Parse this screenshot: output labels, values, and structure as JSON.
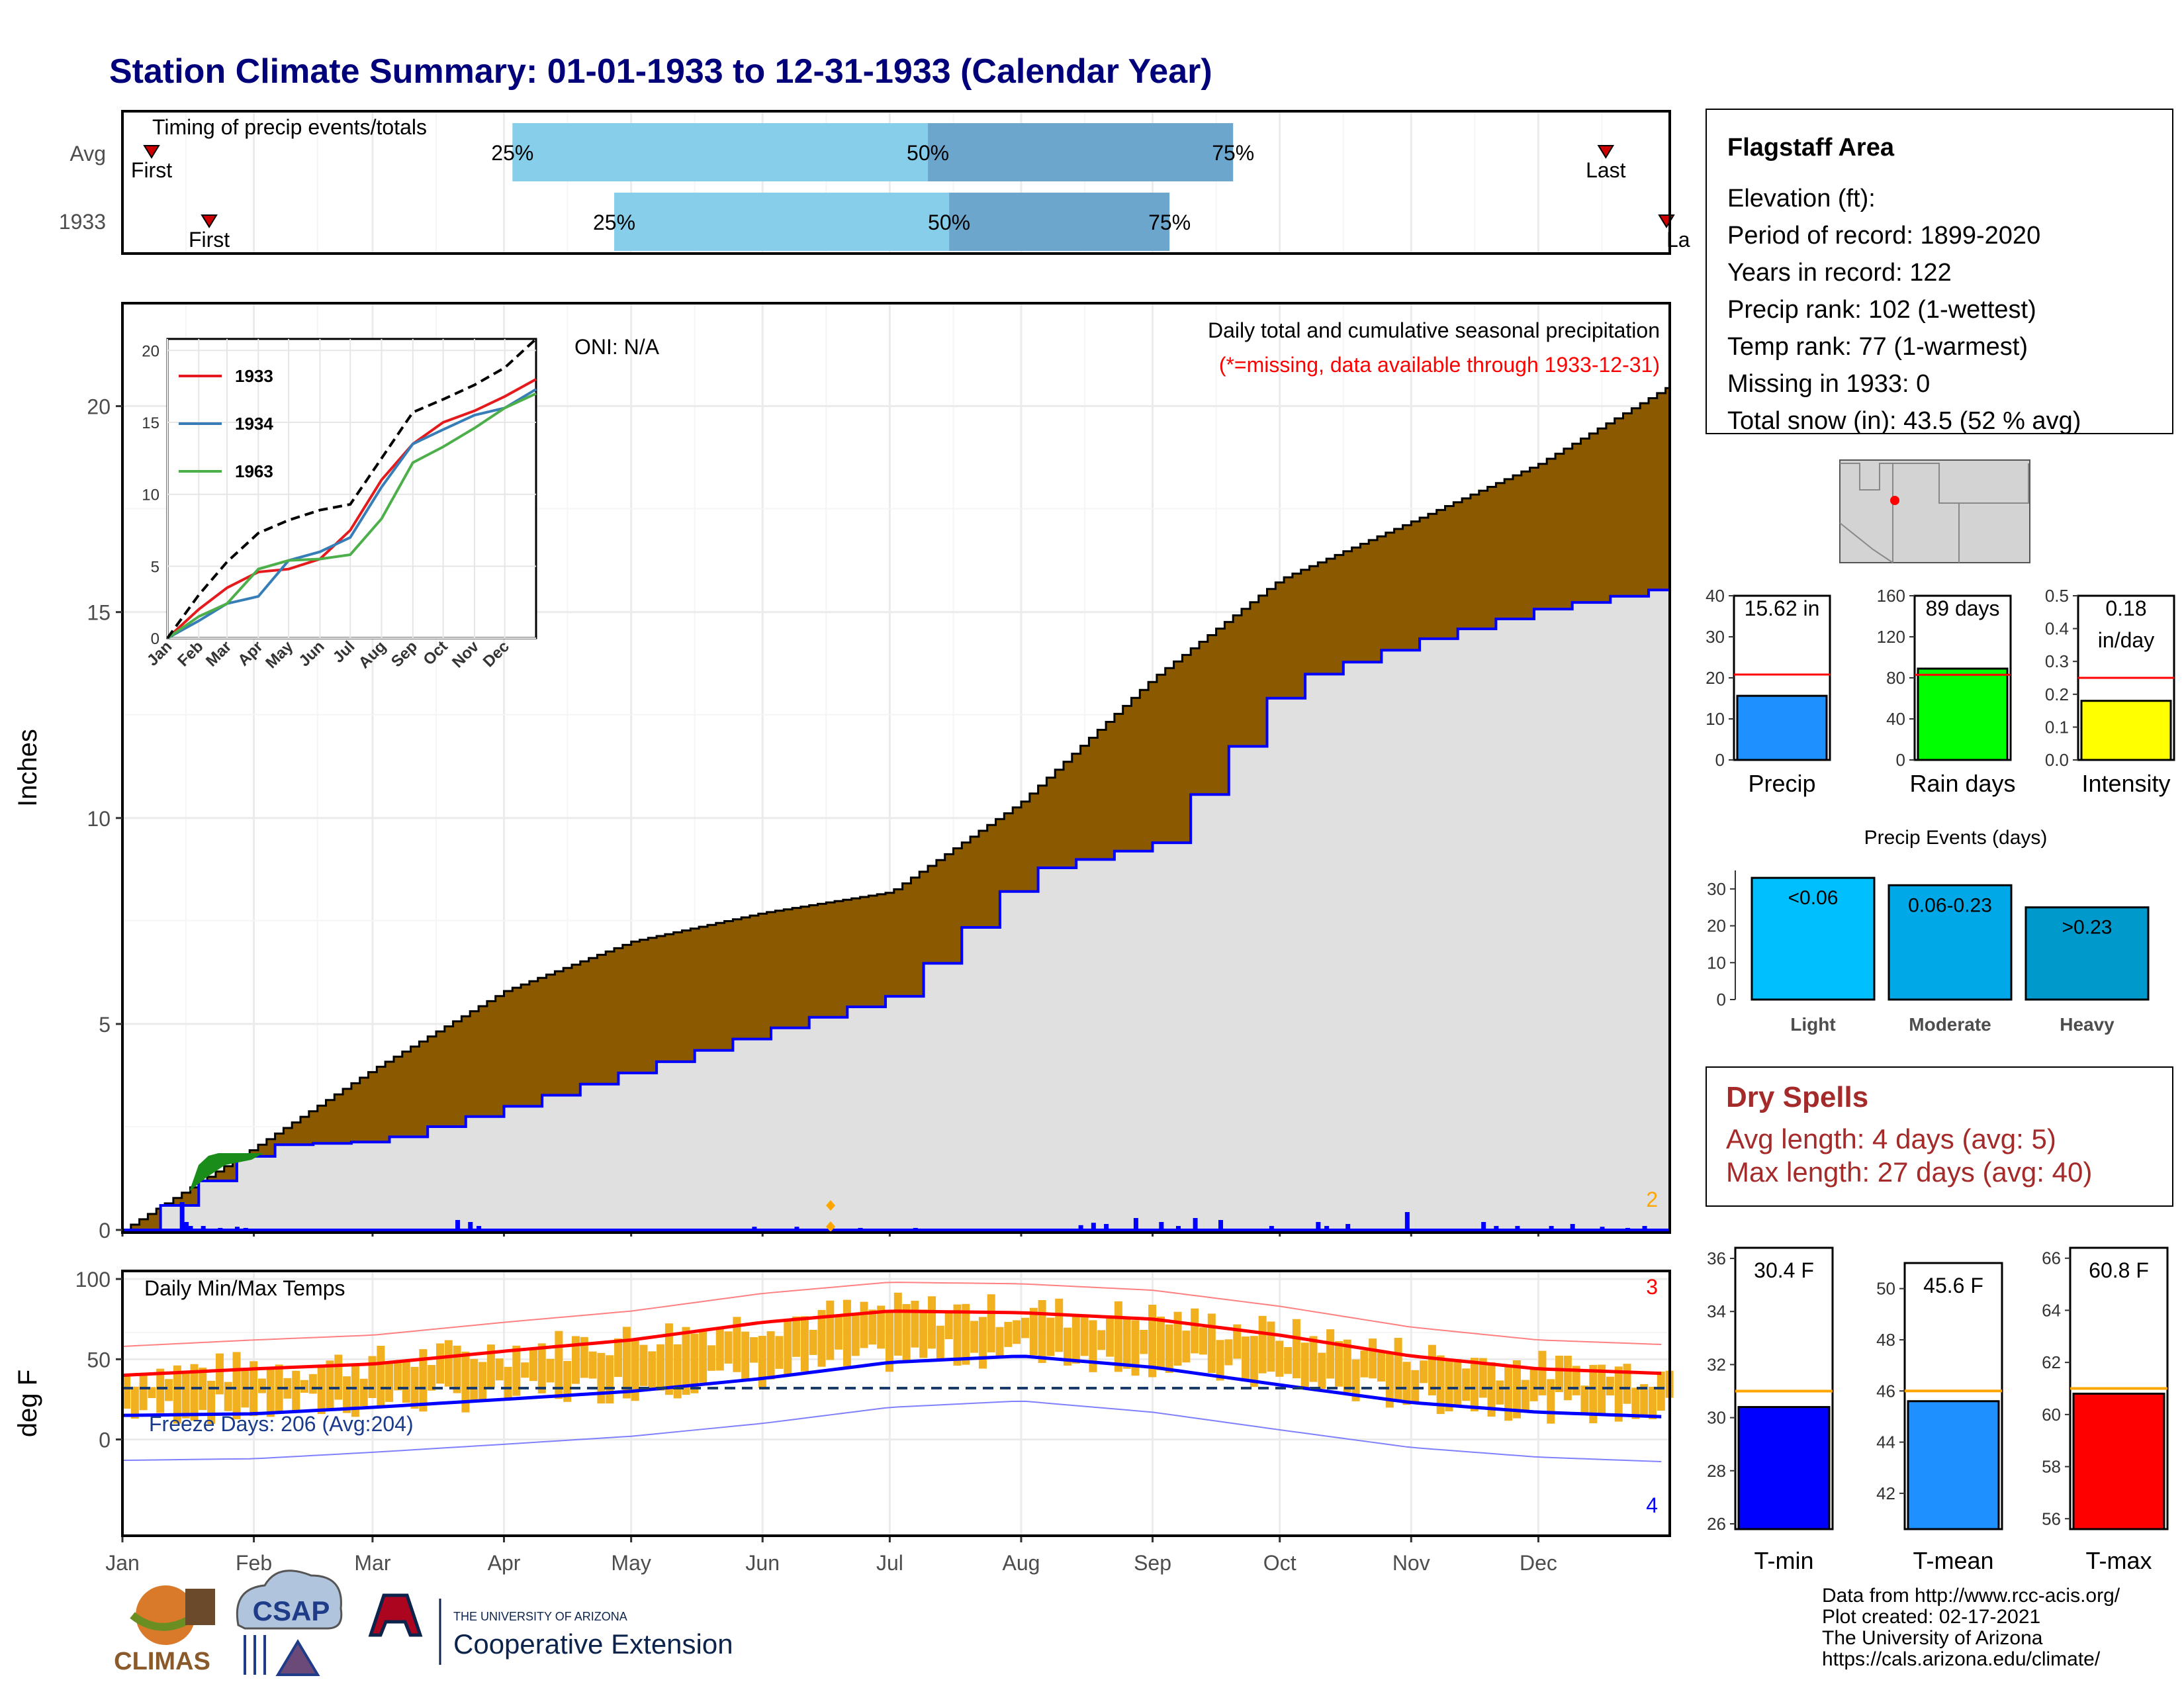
{
  "title": "Station Climate Summary: 01-01-1933 to 12-31-1933 (Calendar Year)",
  "colors": {
    "title": "#00007a",
    "brown": "#8b5a00",
    "gray_fill": "#e0e0e0",
    "blue": "#0000ff",
    "red": "#ff0000",
    "orange": "#e8a500",
    "dark_red": "#a52a2a"
  },
  "timing": {
    "label": "Timing of precip events/totals",
    "rows": [
      {
        "name": "Avg",
        "first_label": "First",
        "last_label": "Last",
        "p25_label": "25%",
        "p50_label": "50%",
        "p75_label": "75%",
        "first_day": 1,
        "p25_day": 93,
        "p50_day": 191,
        "p75_day": 263,
        "last_day": 352
      },
      {
        "name": "1933",
        "first_label": "First",
        "last_label": "Last",
        "p25_label": "25%",
        "p50_label": "50%",
        "p75_label": "75%",
        "first_day": 16,
        "p25_day": 117,
        "p50_day": 196,
        "p75_day": 248,
        "last_day": 365
      }
    ]
  },
  "main": {
    "ylabel": "Inches",
    "onI": "ONI: N/A",
    "legend_title": "Daily total and cumulative seasonal precipitation",
    "legend_note": "(*=missing, data available through 1933-12-31)",
    "corner_count": "2",
    "yticks": [
      "0",
      "5",
      "10",
      "15",
      "20"
    ]
  },
  "inset": {
    "months": [
      "Jan",
      "Feb",
      "Mar",
      "Apr",
      "May",
      "Jun",
      "Jul",
      "Aug",
      "Sep",
      "Oct",
      "Nov",
      "Dec"
    ],
    "yticks": [
      "0",
      "5",
      "10",
      "15",
      "20"
    ],
    "legend": [
      "1933",
      "1934",
      "1963"
    ]
  },
  "temps": {
    "ylabel": "deg F",
    "label": "Daily Min/Max Temps",
    "freeze": "Freeze Days: 206 (Avg:204)",
    "count_hi": "3",
    "count_lo": "4",
    "yticks": [
      "0",
      "50",
      "100"
    ]
  },
  "months": [
    "Jan",
    "Feb",
    "Mar",
    "Apr",
    "May",
    "Jun",
    "Jul",
    "Aug",
    "Sep",
    "Oct",
    "Nov",
    "Dec"
  ],
  "station": {
    "name": "Flagstaff Area",
    "lines": [
      "Elevation (ft):",
      "Period of record: 1899-2020",
      "Years in record: 122",
      "Precip rank: 102 (1-wettest)",
      "Temp rank: 77 (1-warmest)",
      "Missing in 1933: 0",
      "Total snow (in): 43.5 (52 % avg)"
    ]
  },
  "mini_precip": [
    {
      "label": "Precip",
      "value_text": "15.62 in",
      "value": 15.62,
      "avg": 20.8,
      "max": 40,
      "ticks": [
        "0",
        "10",
        "20",
        "30",
        "40"
      ],
      "color": "#1e90ff"
    },
    {
      "label": "Rain days",
      "value_text": "89 days",
      "value": 89,
      "avg": 83,
      "max": 160,
      "ticks": [
        "0",
        "40",
        "80",
        "120",
        "160"
      ],
      "color": "#00ff00"
    },
    {
      "label": "Intensity",
      "value_text": "0.18",
      "value_text2": "in/day",
      "value": 0.18,
      "avg": 0.25,
      "max": 0.5,
      "ticks": [
        "0.0",
        "0.1",
        "0.2",
        "0.3",
        "0.4",
        "0.5"
      ],
      "color": "#ffff00"
    }
  ],
  "events": {
    "title": "Precip Events (days)",
    "categories": [
      "Light",
      "Moderate",
      "Heavy"
    ],
    "labels": [
      "<0.06",
      "0.06-0.23",
      ">0.23"
    ],
    "values": [
      33,
      31,
      25
    ],
    "colors": [
      "#00bfff",
      "#00a8e8",
      "#0099cc"
    ],
    "ticks": [
      "0",
      "10",
      "20",
      "30"
    ]
  },
  "dry": {
    "title": "Dry Spells",
    "avg": "Avg length: 4 days (avg: 5)",
    "max": "Max length: 27 days (avg: 40)"
  },
  "mini_temp": [
    {
      "label": "T-min",
      "value_text": "30.4 F",
      "value": 30.4,
      "avg": 31.0,
      "min": 25.8,
      "max": 36.4,
      "ticks": [
        "26",
        "28",
        "30",
        "32",
        "34",
        "36"
      ],
      "color": "#0000ff"
    },
    {
      "label": "T-mean",
      "value_text": "45.6 F",
      "value": 45.6,
      "avg": 46.0,
      "min": 40.6,
      "max": 51.0,
      "ticks": [
        "42",
        "44",
        "46",
        "48",
        "50"
      ],
      "color": "#1e90ff"
    },
    {
      "label": "T-max",
      "value_text": "60.8 F",
      "value": 60.8,
      "avg": 61.0,
      "min": 55.6,
      "max": 66.4,
      "ticks": [
        "56",
        "58",
        "60",
        "62",
        "64",
        "66"
      ],
      "color": "#ff0000"
    }
  ],
  "footer": {
    "lines": [
      "Data from http://www.rcc-acis.org/",
      "Plot created: 02-17-2021",
      "The University of Arizona",
      "https://cals.arizona.edu/climate/"
    ],
    "logo_climas": "CLIMAS",
    "logo_csap": "CSAP",
    "ua_small": "THE UNIVERSITY OF ARIZONA",
    "ua_big": "Cooperative Extension"
  },
  "chart_data": [
    {
      "type": "bar",
      "name": "timing",
      "categories": [
        "Avg",
        "1933"
      ],
      "series": [
        {
          "name": "25%",
          "values": [
            93,
            117
          ]
        },
        {
          "name": "50%",
          "values": [
            191,
            196
          ]
        },
        {
          "name": "75%",
          "values": [
            263,
            248
          ]
        }
      ],
      "xlim": [
        1,
        365
      ]
    },
    {
      "type": "area",
      "name": "cumulative precipitation",
      "x": [
        "Jan",
        "Feb",
        "Mar",
        "Apr",
        "May",
        "Jun",
        "Jul",
        "Aug",
        "Sep",
        "Oct",
        "Nov",
        "Dec",
        "Dec 31"
      ],
      "series": [
        {
          "name": "average",
          "values": [
            0,
            2.0,
            3.9,
            5.8,
            7.0,
            7.7,
            8.2,
            10.4,
            13.4,
            15.8,
            17.2,
            18.6,
            20.5
          ]
        },
        {
          "name": "1933",
          "values": [
            0,
            2.05,
            2.15,
            3.0,
            3.9,
            4.85,
            5.7,
            8.7,
            9.4,
            13.3,
            14.3,
            15.1,
            15.62
          ]
        }
      ],
      "ylim": [
        0,
        22.5
      ]
    },
    {
      "type": "line",
      "name": "inset",
      "x": [
        "Jan",
        "Feb",
        "Mar",
        "Apr",
        "May",
        "Jun",
        "Jul",
        "Aug",
        "Sep",
        "Oct",
        "Nov",
        "Dec",
        "Dec 31"
      ],
      "series": [
        {
          "name": "1933",
          "values": [
            0,
            2.0,
            3.5,
            4.6,
            4.8,
            5.5,
            7.5,
            11.0,
            13.5,
            15.0,
            15.8,
            16.8,
            18.0
          ]
        },
        {
          "name": "1934",
          "values": [
            0,
            1.2,
            2.4,
            2.9,
            5.4,
            6.0,
            7.0,
            10.5,
            13.5,
            14.5,
            15.5,
            16.0,
            17.3
          ]
        },
        {
          "name": "1963",
          "values": [
            0,
            1.5,
            2.4,
            4.8,
            5.4,
            5.5,
            5.8,
            8.3,
            12.2,
            13.3,
            14.6,
            16.0,
            17.0
          ]
        },
        {
          "values": [
            0,
            3.0,
            5.3,
            7.3,
            8.2,
            8.9,
            9.3,
            12.5,
            15.7,
            16.6,
            17.6,
            18.8,
            20.8
          ]
        }
      ],
      "ylim": [
        0,
        20.8
      ]
    },
    {
      "type": "line",
      "name": "temperatures",
      "x": [
        "Jan",
        "Feb",
        "Mar",
        "Apr",
        "May",
        "Jun",
        "Jul",
        "Aug",
        "Sep",
        "Oct",
        "Nov",
        "Dec",
        "Dec 31"
      ],
      "series": [
        {
          "name": "avg max",
          "values": [
            40,
            44,
            47,
            55,
            62,
            73,
            80,
            79,
            75,
            65,
            52,
            44,
            41
          ]
        },
        {
          "name": "avg min",
          "values": [
            15,
            16,
            20,
            25,
            30,
            38,
            48,
            52,
            45,
            34,
            23,
            17,
            14
          ]
        }
      ],
      "ylim": [
        -40,
        100
      ],
      "freeze_line": 32
    }
  ]
}
